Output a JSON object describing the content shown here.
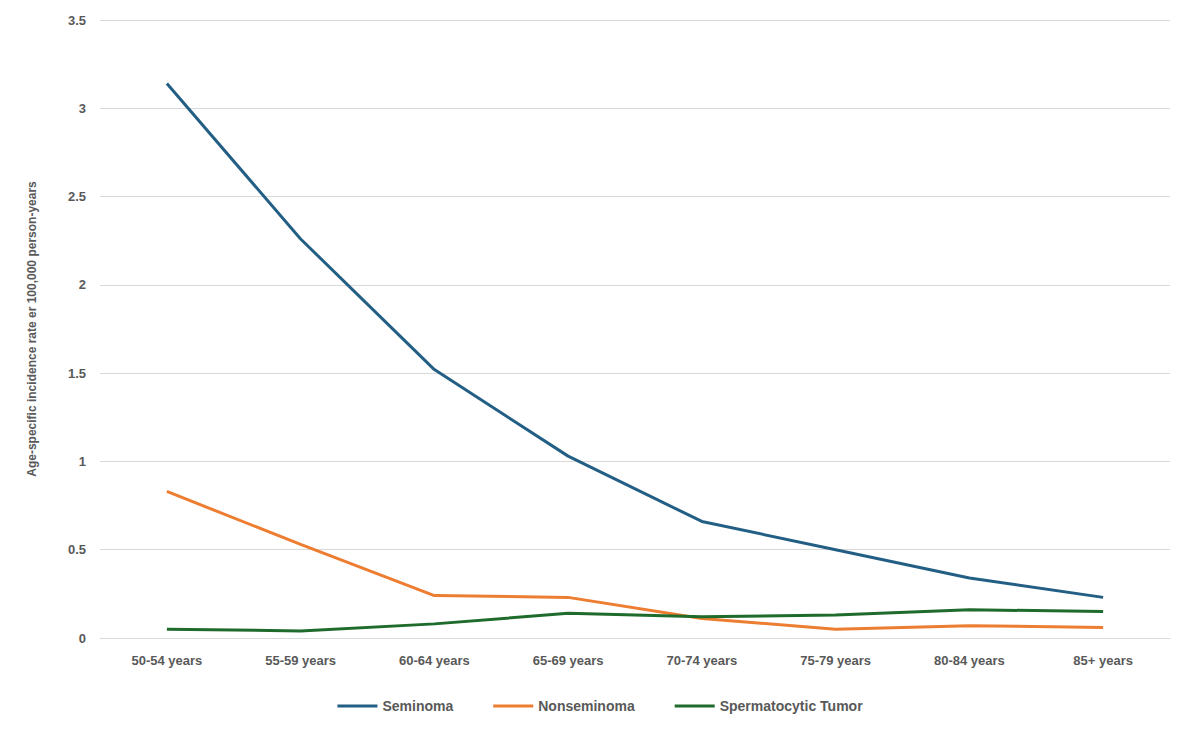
{
  "chart_data": {
    "type": "line",
    "y_label": "Age-specific incidence rate er 100,000 person-years",
    "categories": [
      "50-54 years",
      "55-59 years",
      "60-64 years",
      "65-69 years",
      "70-74 years",
      "75-79 years",
      "80-84 years",
      "85+ years"
    ],
    "series": [
      {
        "name": "Seminoma",
        "color": "#235f84",
        "values": [
          3.14,
          2.26,
          1.52,
          1.03,
          0.66,
          0.5,
          0.34,
          0.23
        ]
      },
      {
        "name": "Nonseminoma",
        "color": "#ed7d31",
        "values": [
          0.83,
          0.53,
          0.24,
          0.23,
          0.11,
          0.05,
          0.07,
          0.06
        ]
      },
      {
        "name": "Spermatocytic Tumor",
        "color": "#1e6b2c",
        "values": [
          0.05,
          0.04,
          0.08,
          0.14,
          0.12,
          0.13,
          0.16,
          0.15
        ]
      }
    ],
    "ylim": [
      0,
      3.5
    ],
    "yticks": [
      0,
      0.5,
      1,
      1.5,
      2,
      2.5,
      3,
      3.5
    ],
    "grid": true,
    "legend": "bottom"
  }
}
